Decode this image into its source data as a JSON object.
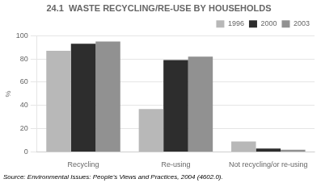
{
  "chart_data": {
    "type": "bar",
    "title": "24.1  WASTE RECYCLING/RE-USE BY HOUSEHOLDS",
    "ylabel": "%",
    "categories": [
      "Recycling",
      "Re-using",
      "Not recycling/or re-using"
    ],
    "series": [
      {
        "name": "1996",
        "color": "#b8b8b8",
        "values": [
          87,
          37,
          9
        ]
      },
      {
        "name": "2000",
        "color": "#2d2d2d",
        "values": [
          93,
          79,
          3
        ]
      },
      {
        "name": "2003",
        "color": "#919191",
        "values": [
          95,
          82,
          2
        ]
      }
    ],
    "ylim": [
      0,
      100
    ],
    "yticks": [
      0,
      20,
      40,
      60,
      80,
      100
    ],
    "grid": true,
    "legend": "upper right",
    "annotations": [
      "Source: Environmental Issues: People's Views and Practices, 2004 (4602.0)."
    ]
  }
}
